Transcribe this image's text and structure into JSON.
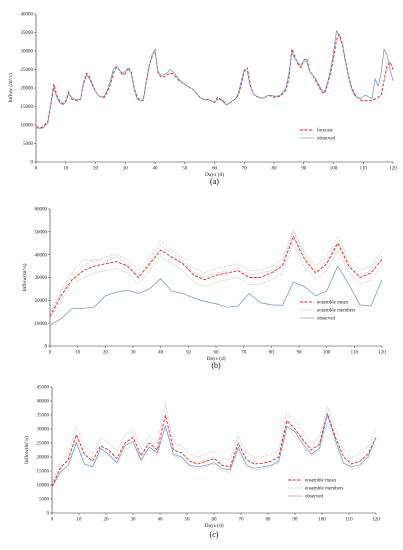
{
  "chart_data": [
    {
      "type": "line",
      "panel_label": "(a)",
      "xlabel": "Days (d)",
      "ylabel": "Inflow (m³/s)",
      "xlim": [
        0,
        120
      ],
      "ylim": [
        0,
        40000
      ],
      "xticks": [
        0,
        10,
        20,
        30,
        40,
        50,
        60,
        70,
        80,
        90,
        100,
        110,
        120
      ],
      "yticks": [
        0,
        5000,
        10000,
        15000,
        20000,
        25000,
        30000,
        35000,
        40000
      ],
      "legend_position": "bottom-right",
      "x": [
        0,
        2,
        4,
        5,
        6,
        7,
        8,
        9,
        10,
        11,
        12,
        13,
        14,
        15,
        16,
        17,
        18,
        19,
        20,
        21,
        22,
        23,
        24,
        25,
        26,
        27,
        28,
        29,
        30,
        31,
        32,
        33,
        34,
        35,
        36,
        37,
        38,
        39,
        40,
        41,
        42,
        43,
        44,
        45,
        46,
        47,
        48,
        49,
        50,
        51,
        52,
        53,
        54,
        55,
        56,
        57,
        58,
        59,
        60,
        61,
        62,
        63,
        64,
        65,
        66,
        67,
        68,
        69,
        70,
        71,
        72,
        73,
        74,
        75,
        76,
        77,
        78,
        79,
        80,
        81,
        82,
        83,
        84,
        85,
        86,
        87,
        88,
        89,
        90,
        91,
        92,
        93,
        94,
        95,
        96,
        97,
        98,
        99,
        100,
        101,
        102,
        103,
        104,
        105,
        106,
        107,
        108,
        109,
        110,
        111,
        112,
        113,
        114,
        115,
        116,
        117,
        118,
        119,
        120
      ],
      "series": [
        {
          "name": "forecast",
          "color": "#e32222",
          "dash": "dashed",
          "values": [
            9500,
            9300,
            11000,
            16000,
            21000,
            18000,
            16500,
            15800,
            16500,
            19000,
            17000,
            16800,
            16500,
            17000,
            21500,
            24000,
            23000,
            21000,
            19000,
            18000,
            17500,
            17500,
            19000,
            21000,
            24000,
            25500,
            25000,
            23500,
            24000,
            25500,
            24500,
            20000,
            17500,
            16800,
            16600,
            21500,
            26000,
            28500,
            30500,
            24000,
            23000,
            23000,
            23500,
            24000,
            23800,
            23000,
            22000,
            21500,
            21000,
            20500,
            20000,
            19500,
            18500,
            17500,
            17000,
            16800,
            17000,
            16500,
            16000,
            17500,
            17000,
            16500,
            15500,
            15800,
            16500,
            17000,
            18000,
            21000,
            24500,
            25500,
            21000,
            18500,
            17800,
            17500,
            17200,
            17500,
            18000,
            17800,
            17500,
            17600,
            17800,
            18500,
            19500,
            22500,
            30500,
            28500,
            26500,
            25500,
            27500,
            28000,
            24500,
            23500,
            22000,
            20500,
            19000,
            18500,
            21000,
            24000,
            28000,
            33000,
            34500,
            32000,
            27500,
            23500,
            20500,
            18500,
            17500,
            16800,
            16500,
            16600,
            16500,
            16800,
            17000,
            17500,
            18000,
            22000,
            26000,
            27000,
            25000
          ],
          "note_visible": "forecast"
        },
        {
          "name": "observed",
          "color": "#6a8fc9",
          "dash": "solid",
          "values": [
            9200,
            9000,
            10500,
            15500,
            20000,
            17500,
            16000,
            15500,
            16000,
            18500,
            17500,
            17000,
            16800,
            17000,
            21000,
            23500,
            22500,
            20500,
            19000,
            18000,
            17500,
            17800,
            19500,
            22000,
            25000,
            26000,
            25000,
            24000,
            24500,
            25000,
            24000,
            19500,
            17000,
            16500,
            16500,
            21000,
            25500,
            29000,
            30000,
            24500,
            23500,
            23500,
            24000,
            25000,
            24500,
            23500,
            22500,
            21500,
            21000,
            20500,
            20000,
            19500,
            18500,
            17500,
            17000,
            16800,
            16800,
            16500,
            16200,
            17000,
            16800,
            16200,
            15500,
            16000,
            16500,
            17000,
            18500,
            22000,
            25000,
            24500,
            20500,
            18500,
            17800,
            17500,
            17200,
            17500,
            18000,
            18000,
            17800,
            17800,
            18000,
            18800,
            20000,
            24000,
            29500,
            28000,
            27000,
            26000,
            27500,
            27000,
            24500,
            23500,
            22500,
            21000,
            19500,
            19000,
            21500,
            25000,
            29500,
            35500,
            34000,
            31500,
            27000,
            23000,
            20000,
            18000,
            17500,
            17000,
            17800,
            18000,
            17500,
            17200,
            22500,
            20500,
            24000,
            30500,
            29000,
            25000,
            22000
          ]
        }
      ]
    },
    {
      "type": "line",
      "panel_label": "(b)",
      "xlabel": "Days (d)",
      "ylabel": "Inflow(m³/s)",
      "xlim": [
        0,
        120
      ],
      "ylim": [
        0,
        60000
      ],
      "xticks": [
        0,
        10,
        20,
        30,
        40,
        50,
        60,
        70,
        80,
        90,
        100,
        110,
        120
      ],
      "yticks": [
        0,
        10000,
        20000,
        30000,
        40000,
        50000,
        60000
      ],
      "legend_position": "bottom-right",
      "legend": [
        "ensemble mean",
        "ensemble members",
        "observed"
      ],
      "x": [
        0,
        4,
        8,
        12,
        16,
        20,
        24,
        28,
        32,
        36,
        40,
        44,
        48,
        52,
        56,
        60,
        64,
        68,
        72,
        76,
        80,
        84,
        88,
        92,
        96,
        100,
        104,
        108,
        112,
        116,
        120
      ],
      "series": [
        {
          "name": "ensemble mean",
          "color": "#e32222",
          "dash": "dashed",
          "values": [
            13000,
            22000,
            29000,
            33000,
            35000,
            36000,
            37000,
            35000,
            30000,
            36000,
            42000,
            39000,
            36000,
            31000,
            29000,
            31000,
            32000,
            33000,
            30000,
            30000,
            32000,
            35000,
            48000,
            38000,
            32000,
            36000,
            45000,
            35000,
            30000,
            32000,
            38000
          ]
        },
        {
          "name": "ensemble members",
          "color": "#8a8a8a",
          "dash": "dotted",
          "members": [
            [
              14000,
              24000,
              32000,
              38000,
              37000,
              39000,
              40000,
              38000,
              33000,
              39000,
              46000,
              42000,
              39000,
              34000,
              32000,
              34000,
              35000,
              36000,
              33000,
              33000,
              35000,
              38000,
              51000,
              41000,
              35000,
              39000,
              48000,
              38000,
              33000,
              35000,
              42000
            ],
            [
              12000,
              20000,
              27000,
              30000,
              32000,
              33000,
              34000,
              32000,
              27000,
              33000,
              39000,
              36000,
              33000,
              28000,
              26000,
              28000,
              29000,
              30000,
              27000,
              27000,
              29000,
              32000,
              45000,
              35000,
              29000,
              33000,
              42000,
              32000,
              27000,
              29000,
              35000
            ],
            [
              15000,
              23000,
              30000,
              35000,
              38000,
              37000,
              39000,
              36000,
              31000,
              37000,
              44000,
              41000,
              37000,
              32000,
              30000,
              32000,
              33000,
              34000,
              31000,
              32000,
              33000,
              36000,
              50000,
              40000,
              33000,
              37000,
              46000,
              36000,
              31000,
              33000,
              40000
            ]
          ]
        },
        {
          "name": "observed",
          "color": "#6a8fc9",
          "dash": "solid",
          "values": [
            9000,
            12000,
            16500,
            16500,
            17000,
            22000,
            23500,
            24500,
            23000,
            25000,
            29500,
            24000,
            23000,
            21000,
            19500,
            18500,
            17000,
            17500,
            23000,
            19000,
            18000,
            17800,
            28000,
            26000,
            22000,
            24000,
            35000,
            27000,
            18000,
            17500,
            29000
          ]
        }
      ]
    },
    {
      "type": "line",
      "panel_label": "(c)",
      "xlabel": "Days (d)",
      "ylabel": "Inflow(m³/s)",
      "xlim": [
        0,
        120
      ],
      "ylim": [
        0,
        45000
      ],
      "xticks": [
        0,
        10,
        20,
        30,
        40,
        50,
        60,
        70,
        80,
        90,
        100,
        110,
        120
      ],
      "yticks": [
        0,
        5000,
        10000,
        15000,
        20000,
        25000,
        30000,
        35000,
        40000,
        45000
      ],
      "legend_position": "bottom-right",
      "legend": [
        "ensemble mean",
        "ensemble members",
        "observed"
      ],
      "x": [
        0,
        3,
        6,
        9,
        12,
        15,
        18,
        21,
        24,
        27,
        30,
        33,
        36,
        39,
        42,
        45,
        48,
        51,
        54,
        57,
        60,
        63,
        66,
        69,
        72,
        75,
        78,
        81,
        84,
        87,
        90,
        93,
        96,
        99,
        102,
        105,
        108,
        111,
        114,
        117,
        120
      ],
      "series": [
        {
          "name": "ensemble mean",
          "color": "#e32222",
          "dash": "dashed",
          "values": [
            9500,
            16000,
            19000,
            28000,
            21000,
            18500,
            24000,
            22500,
            19500,
            25000,
            27000,
            20500,
            25000,
            22500,
            35000,
            22500,
            21500,
            18500,
            17500,
            18500,
            19500,
            17000,
            16500,
            25000,
            19000,
            17500,
            17800,
            18500,
            20000,
            33000,
            30000,
            26000,
            22500,
            24500,
            35500,
            27000,
            20000,
            17500,
            18500,
            21000,
            27000
          ]
        },
        {
          "name": "ensemble members",
          "color": "#8a8a8a",
          "dash": "dotted",
          "members": [
            [
              10500,
              18000,
              21000,
              31000,
              24000,
              21000,
              27000,
              25000,
              22000,
              28000,
              30000,
              23000,
              28000,
              25000,
              39500,
              25000,
              24000,
              21000,
              20000,
              21000,
              22000,
              19500,
              19000,
              27500,
              21500,
              20000,
              20000,
              21000,
              22500,
              36000,
              33000,
              29000,
              25000,
              27000,
              38000,
              30000,
              22500,
              20000,
              21000,
              23500,
              30000
            ],
            [
              9000,
              14500,
              17000,
              25500,
              19000,
              16500,
              22000,
              20500,
              17500,
              22500,
              24500,
              18500,
              22500,
              20500,
              31500,
              20500,
              19500,
              16500,
              15500,
              16500,
              17500,
              15000,
              14500,
              22500,
              17000,
              15500,
              15800,
              16500,
              18000,
              30500,
              27500,
              23500,
              20500,
              22000,
              32000,
              24500,
              18000,
              15500,
              16500,
              19000,
              24500
            ]
          ]
        },
        {
          "name": "observed",
          "color": "#6a8fc9",
          "dash": "solid",
          "values": [
            9200,
            14500,
            17000,
            25000,
            17500,
            16500,
            23000,
            21000,
            18000,
            24000,
            25500,
            19000,
            23500,
            21500,
            31000,
            21000,
            20000,
            17000,
            16500,
            17000,
            18000,
            15800,
            15500,
            23500,
            17000,
            16000,
            16500,
            17000,
            18500,
            31000,
            29000,
            24500,
            21000,
            23000,
            35000,
            26000,
            17800,
            16500,
            17200,
            20000,
            27000
          ]
        }
      ]
    }
  ]
}
